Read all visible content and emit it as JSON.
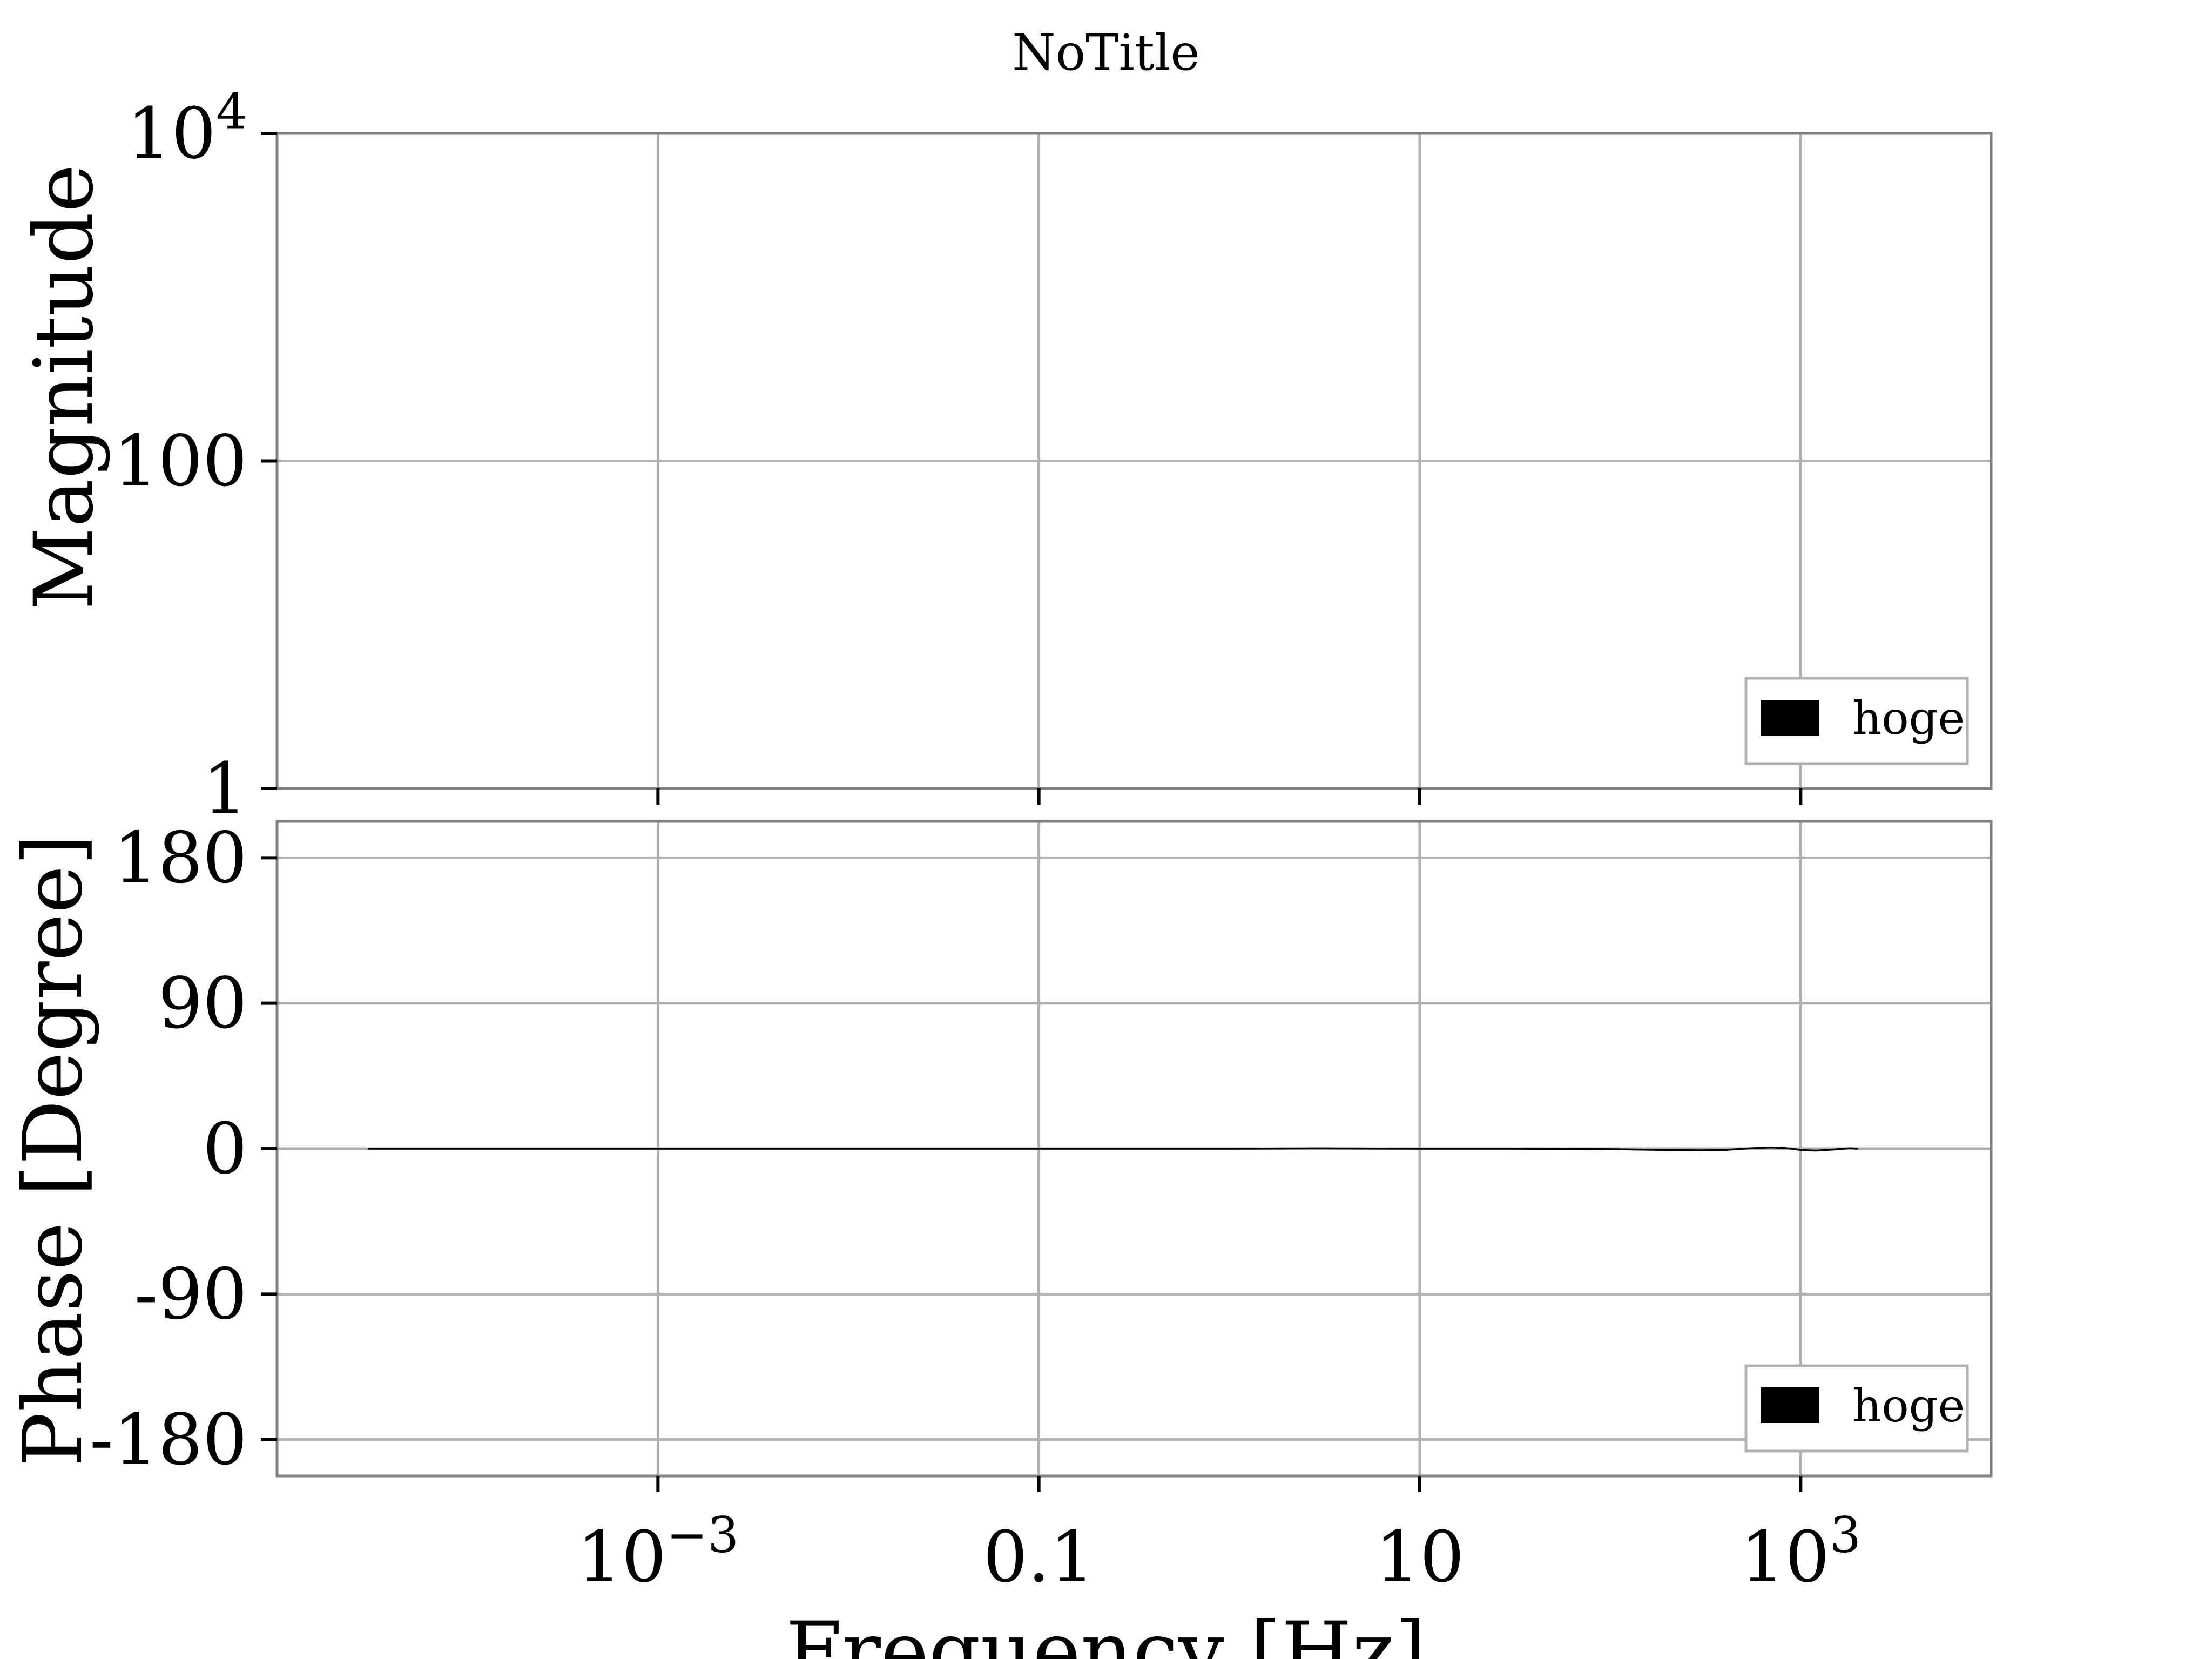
{
  "chart_data": [
    {
      "type": "line",
      "panel": "magnitude",
      "title": "NoTitle",
      "xlabel": "",
      "ylabel": "Magnitude",
      "xscale": "log",
      "yscale": "log",
      "xlim": [
        1e-05,
        10000
      ],
      "ylim": [
        1,
        10000
      ],
      "xticks": [
        {
          "value": 0.001,
          "base": "10",
          "exp": "−3"
        },
        {
          "value": 0.1,
          "text": "0.1"
        },
        {
          "value": 10,
          "text": "10"
        },
        {
          "value": 1000,
          "base": "10",
          "exp": "3"
        }
      ],
      "yticks": [
        {
          "value": 1,
          "text": "1"
        },
        {
          "value": 100,
          "text": "100"
        },
        {
          "value": 10000,
          "base": "10",
          "exp": "4"
        }
      ],
      "grid": true,
      "legend": {
        "position": "lower-right",
        "entries": [
          {
            "label": "hoge",
            "color": "#000000"
          }
        ]
      },
      "series": [
        {
          "name": "hoge",
          "color": "#000000",
          "x": [],
          "y": []
        }
      ]
    },
    {
      "type": "line",
      "panel": "phase",
      "title": "",
      "xlabel": "Frequency [Hz]",
      "ylabel": "Phase [Degree]",
      "xscale": "log",
      "xlim": [
        1e-05,
        10000
      ],
      "ylim": [
        -202.5,
        202.5
      ],
      "xticks": [
        {
          "value": 0.001,
          "base": "10",
          "exp": "−3"
        },
        {
          "value": 0.1,
          "text": "0.1"
        },
        {
          "value": 10,
          "text": "10"
        },
        {
          "value": 1000,
          "base": "10",
          "exp": "3"
        }
      ],
      "yticks": [
        {
          "value": 180,
          "text": "180"
        },
        {
          "value": 90,
          "text": "90"
        },
        {
          "value": 0,
          "text": "0"
        },
        {
          "value": -90,
          "text": "-90"
        },
        {
          "value": -180,
          "text": "-180"
        }
      ],
      "grid": true,
      "legend": {
        "position": "lower-right",
        "entries": [
          {
            "label": "hoge",
            "color": "#000000"
          }
        ]
      },
      "series": [
        {
          "name": "hoge",
          "color": "#000000",
          "x": [
            3e-05,
            0.0001,
            0.001,
            0.01,
            0.1,
            1,
            3,
            10,
            30,
            100,
            200,
            300,
            400,
            500,
            600,
            700,
            800,
            900,
            1000,
            1200,
            1500,
            1800,
            2000
          ],
          "y": [
            0,
            0,
            0,
            0,
            0,
            0,
            0.2,
            0,
            0,
            -0.3,
            -0.8,
            -1.0,
            -0.8,
            0,
            0.5,
            0.8,
            0.5,
            0,
            -0.8,
            -1.2,
            -0.5,
            0.3,
            0
          ]
        }
      ]
    }
  ]
}
